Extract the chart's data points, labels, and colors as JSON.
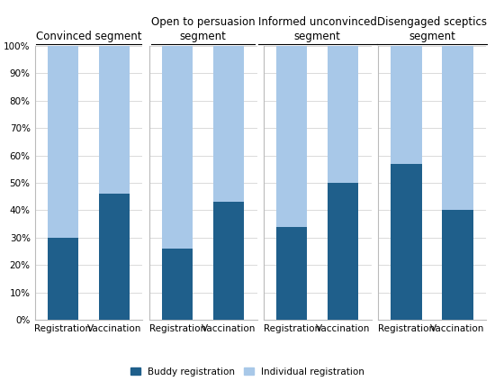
{
  "segments": [
    "Convinced segment",
    "Open to persuasion\nsegment",
    "Informed unconvinced\nsegment",
    "Disengaged sceptics\nsegment"
  ],
  "buddy_registration": [
    30,
    46,
    26,
    43,
    34,
    50,
    57,
    40
  ],
  "individual_registration": [
    70,
    54,
    74,
    57,
    66,
    50,
    43,
    60
  ],
  "color_buddy": "#1f5f8b",
  "color_individual": "#a8c8e8",
  "ylabel_ticks": [
    "0%",
    "10%",
    "20%",
    "30%",
    "40%",
    "50%",
    "60%",
    "70%",
    "80%",
    "90%",
    "100%"
  ],
  "legend_buddy": "Buddy registration",
  "legend_individual": "Individual registration",
  "background_color": "#ffffff",
  "title_fontsize": 8.5,
  "tick_fontsize": 7.5,
  "legend_fontsize": 7.5
}
